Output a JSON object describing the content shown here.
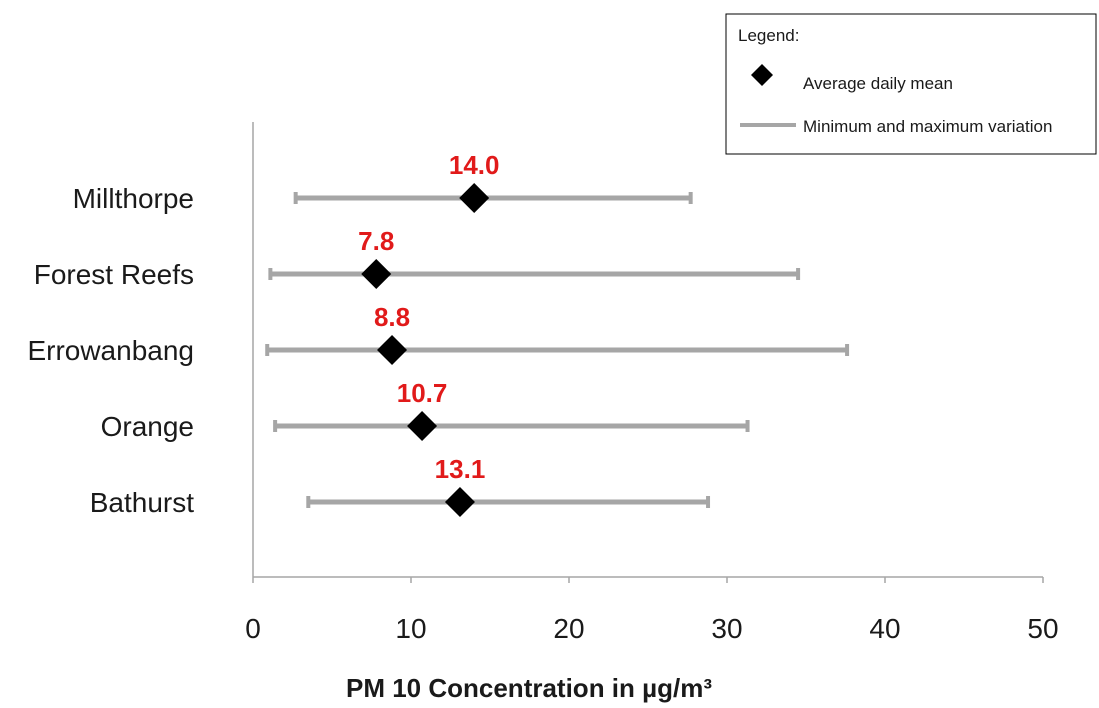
{
  "chart_data": {
    "type": "scatter",
    "title": "",
    "xlabel": "PM 10 Concentration in µg/m³",
    "ylabel": "",
    "xlim": [
      0,
      50
    ],
    "xticks": [
      "0",
      "10",
      "20",
      "30",
      "40",
      "50"
    ],
    "grid": false,
    "legend_position": "top-right",
    "legend": {
      "title": "Legend:",
      "mean_label": "Average daily mean",
      "range_label": "Minimum and maximum variation"
    },
    "categories": [
      "Millthorpe",
      "Forest Reefs",
      "Errowanbang",
      "Orange",
      "Bathurst"
    ],
    "series": [
      {
        "name": "Average daily mean",
        "values": [
          14.0,
          7.8,
          8.8,
          10.7,
          13.1
        ],
        "labels": [
          "14.0",
          "7.8",
          "8.8",
          "10.7",
          "13.1"
        ]
      },
      {
        "name": "Minimum",
        "values": [
          2.7,
          1.1,
          0.9,
          1.4,
          3.5
        ]
      },
      {
        "name": "Maximum",
        "values": [
          27.7,
          34.5,
          37.6,
          31.3,
          28.8
        ]
      }
    ],
    "colors": {
      "mean": "#000000",
      "range": "#a6a6a6",
      "value_label": "#e11a1a",
      "axis": "#a6a6a6"
    }
  }
}
